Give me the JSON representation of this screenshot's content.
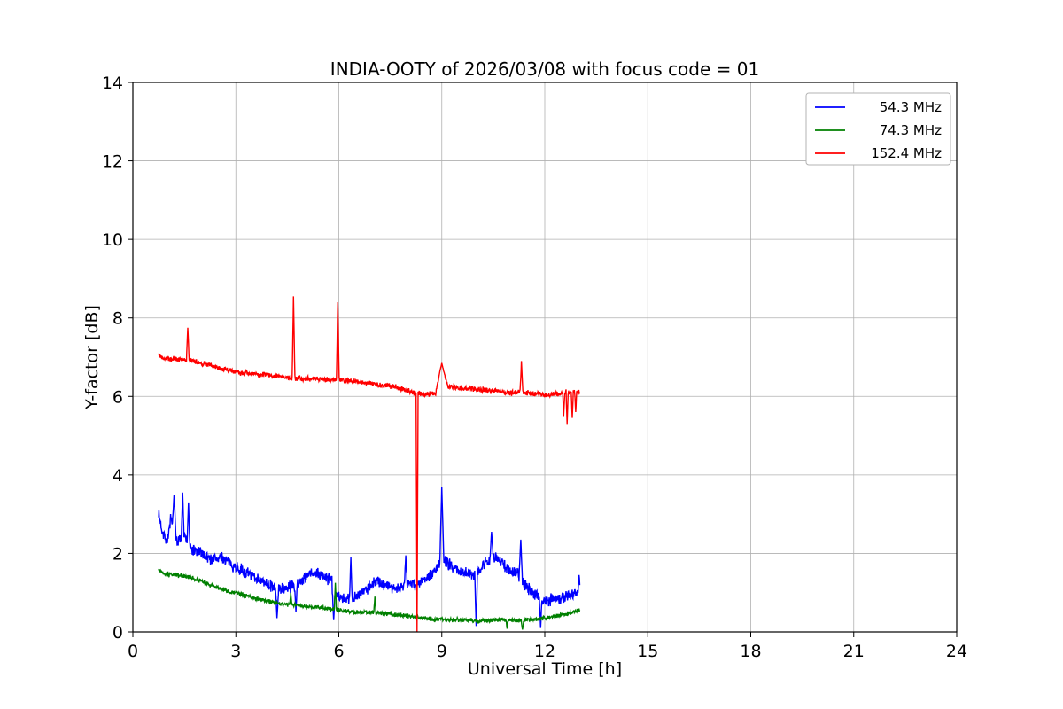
{
  "figure": {
    "title": "INDIA-OOTY of 2026/03/08 with focus code = 01",
    "xlabel": "Universal Time [h]",
    "ylabel": "Y-factor [dB]"
  },
  "chart_data": {
    "type": "line",
    "title": "INDIA-OOTY of 2026/03/08 with focus code = 01",
    "xlabel": "Universal Time [h]",
    "ylabel": "Y-factor [dB]",
    "xlim": [
      0,
      24
    ],
    "ylim": [
      0,
      14
    ],
    "xticks": [
      0,
      3,
      6,
      9,
      12,
      15,
      18,
      21,
      24
    ],
    "yticks": [
      0,
      2,
      4,
      6,
      8,
      10,
      12,
      14
    ],
    "grid": true,
    "grid_color": "#b0b0b0",
    "legend": {
      "position": "upper right",
      "entries": [
        "54.3 MHz",
        "74.3 MHz",
        "152.4 MHz"
      ]
    },
    "series": [
      {
        "name": "54.3 MHz",
        "color": "#0000ff",
        "x_range": [
          0.75,
          13.02
        ],
        "noise": 0.13,
        "keypoints": [
          [
            0.75,
            3.0
          ],
          [
            0.85,
            2.6
          ],
          [
            1.0,
            2.3
          ],
          [
            1.1,
            2.85
          ],
          [
            1.3,
            2.3
          ],
          [
            1.5,
            2.45
          ],
          [
            1.7,
            2.1
          ],
          [
            2.0,
            2.0
          ],
          [
            2.3,
            1.85
          ],
          [
            2.6,
            1.9
          ],
          [
            3.0,
            1.65
          ],
          [
            3.3,
            1.5
          ],
          [
            3.6,
            1.4
          ],
          [
            3.9,
            1.2
          ],
          [
            4.1,
            1.15
          ],
          [
            4.3,
            1.1
          ],
          [
            4.6,
            1.15
          ],
          [
            4.9,
            1.3
          ],
          [
            5.2,
            1.5
          ],
          [
            5.5,
            1.45
          ],
          [
            5.8,
            1.3
          ],
          [
            6.0,
            0.9
          ],
          [
            6.2,
            0.8
          ],
          [
            6.5,
            0.9
          ],
          [
            6.8,
            1.1
          ],
          [
            7.1,
            1.3
          ],
          [
            7.4,
            1.2
          ],
          [
            7.7,
            1.1
          ],
          [
            8.0,
            1.25
          ],
          [
            8.3,
            1.2
          ],
          [
            8.6,
            1.4
          ],
          [
            8.9,
            1.7
          ],
          [
            9.1,
            1.8
          ],
          [
            9.4,
            1.6
          ],
          [
            9.7,
            1.5
          ],
          [
            10.0,
            1.5
          ],
          [
            10.3,
            1.8
          ],
          [
            10.6,
            1.9
          ],
          [
            10.9,
            1.6
          ],
          [
            11.2,
            1.5
          ],
          [
            11.5,
            1.1
          ],
          [
            11.8,
            0.9
          ],
          [
            12.0,
            0.8
          ],
          [
            12.3,
            0.85
          ],
          [
            12.6,
            0.9
          ],
          [
            12.9,
            1.0
          ],
          [
            13.02,
            1.1
          ]
        ],
        "spikes": [
          {
            "x": 1.2,
            "y": 3.5,
            "w": 0.05
          },
          {
            "x": 1.45,
            "y": 3.55,
            "w": 0.04
          },
          {
            "x": 1.62,
            "y": 3.3,
            "w": 0.04
          },
          {
            "x": 4.2,
            "y": 0.35,
            "w": 0.05
          },
          {
            "x": 4.75,
            "y": 0.5,
            "w": 0.04
          },
          {
            "x": 5.85,
            "y": 0.3,
            "w": 0.05
          },
          {
            "x": 6.35,
            "y": 1.9,
            "w": 0.04
          },
          {
            "x": 7.95,
            "y": 1.95,
            "w": 0.04
          },
          {
            "x": 9.0,
            "y": 3.7,
            "w": 0.06
          },
          {
            "x": 10.0,
            "y": 0.15,
            "w": 0.04
          },
          {
            "x": 10.45,
            "y": 2.55,
            "w": 0.05
          },
          {
            "x": 11.3,
            "y": 2.35,
            "w": 0.05
          },
          {
            "x": 11.88,
            "y": 0.1,
            "w": 0.04
          },
          {
            "x": 13.0,
            "y": 1.45,
            "w": 0.03
          }
        ]
      },
      {
        "name": "74.3 MHz",
        "color": "#008000",
        "x_range": [
          0.75,
          13.02
        ],
        "noise": 0.05,
        "keypoints": [
          [
            0.75,
            1.6
          ],
          [
            0.9,
            1.5
          ],
          [
            1.2,
            1.45
          ],
          [
            1.5,
            1.42
          ],
          [
            1.8,
            1.35
          ],
          [
            2.1,
            1.25
          ],
          [
            2.4,
            1.15
          ],
          [
            2.7,
            1.05
          ],
          [
            3.0,
            1.0
          ],
          [
            3.3,
            0.92
          ],
          [
            3.6,
            0.85
          ],
          [
            3.9,
            0.78
          ],
          [
            4.2,
            0.73
          ],
          [
            4.5,
            0.7
          ],
          [
            4.8,
            0.67
          ],
          [
            5.1,
            0.64
          ],
          [
            5.4,
            0.62
          ],
          [
            5.7,
            0.6
          ],
          [
            6.0,
            0.55
          ],
          [
            6.3,
            0.52
          ],
          [
            6.6,
            0.5
          ],
          [
            6.9,
            0.5
          ],
          [
            7.2,
            0.48
          ],
          [
            7.5,
            0.45
          ],
          [
            7.8,
            0.42
          ],
          [
            8.1,
            0.4
          ],
          [
            8.4,
            0.36
          ],
          [
            8.7,
            0.33
          ],
          [
            9.0,
            0.32
          ],
          [
            9.3,
            0.3
          ],
          [
            9.6,
            0.3
          ],
          [
            9.9,
            0.28
          ],
          [
            10.2,
            0.28
          ],
          [
            10.5,
            0.3
          ],
          [
            10.8,
            0.3
          ],
          [
            11.1,
            0.3
          ],
          [
            11.4,
            0.3
          ],
          [
            11.7,
            0.32
          ],
          [
            12.0,
            0.35
          ],
          [
            12.3,
            0.4
          ],
          [
            12.6,
            0.45
          ],
          [
            12.9,
            0.52
          ],
          [
            13.02,
            0.56
          ]
        ],
        "spikes": [
          {
            "x": 4.6,
            "y": 1.0,
            "w": 0.03
          },
          {
            "x": 5.9,
            "y": 1.25,
            "w": 0.03
          },
          {
            "x": 7.05,
            "y": 0.9,
            "w": 0.03
          },
          {
            "x": 10.9,
            "y": 0.08,
            "w": 0.03
          },
          {
            "x": 11.35,
            "y": 0.06,
            "w": 0.04
          }
        ]
      },
      {
        "name": "152.4 MHz",
        "color": "#ff0000",
        "x_range": [
          0.75,
          13.02
        ],
        "noise": 0.06,
        "keypoints": [
          [
            0.75,
            7.05
          ],
          [
            0.9,
            6.98
          ],
          [
            1.1,
            6.95
          ],
          [
            1.4,
            6.95
          ],
          [
            1.7,
            6.9
          ],
          [
            2.0,
            6.85
          ],
          [
            2.3,
            6.78
          ],
          [
            2.6,
            6.7
          ],
          [
            2.9,
            6.65
          ],
          [
            3.2,
            6.6
          ],
          [
            3.5,
            6.57
          ],
          [
            3.8,
            6.55
          ],
          [
            4.1,
            6.52
          ],
          [
            4.4,
            6.5
          ],
          [
            4.7,
            6.48
          ],
          [
            5.0,
            6.45
          ],
          [
            5.3,
            6.45
          ],
          [
            5.6,
            6.42
          ],
          [
            5.9,
            6.42
          ],
          [
            6.2,
            6.4
          ],
          [
            6.5,
            6.38
          ],
          [
            6.8,
            6.35
          ],
          [
            7.1,
            6.3
          ],
          [
            7.4,
            6.28
          ],
          [
            7.7,
            6.22
          ],
          [
            8.0,
            6.15
          ],
          [
            8.3,
            6.08
          ],
          [
            8.6,
            6.05
          ],
          [
            8.85,
            6.08
          ],
          [
            9.2,
            6.25
          ],
          [
            9.5,
            6.22
          ],
          [
            9.8,
            6.2
          ],
          [
            10.1,
            6.18
          ],
          [
            10.4,
            6.15
          ],
          [
            10.7,
            6.12
          ],
          [
            11.0,
            6.1
          ],
          [
            11.3,
            6.1
          ],
          [
            11.6,
            6.08
          ],
          [
            11.9,
            6.05
          ],
          [
            12.2,
            6.05
          ],
          [
            12.5,
            6.1
          ],
          [
            12.8,
            6.1
          ],
          [
            13.02,
            6.12
          ]
        ],
        "spikes": [
          {
            "x": 1.6,
            "y": 7.75,
            "w": 0.04
          },
          {
            "x": 4.68,
            "y": 8.55,
            "w": 0.04
          },
          {
            "x": 5.97,
            "y": 8.4,
            "w": 0.04
          },
          {
            "x": 8.28,
            "y": 0.0,
            "w": 0.03
          },
          {
            "x": 9.0,
            "y": 6.85,
            "w": 0.18
          },
          {
            "x": 11.32,
            "y": 6.9,
            "w": 0.04
          },
          {
            "x": 12.55,
            "y": 5.5,
            "w": 0.03
          },
          {
            "x": 12.65,
            "y": 5.3,
            "w": 0.03
          },
          {
            "x": 12.8,
            "y": 5.45,
            "w": 0.03
          },
          {
            "x": 12.9,
            "y": 5.6,
            "w": 0.03
          }
        ]
      }
    ]
  }
}
